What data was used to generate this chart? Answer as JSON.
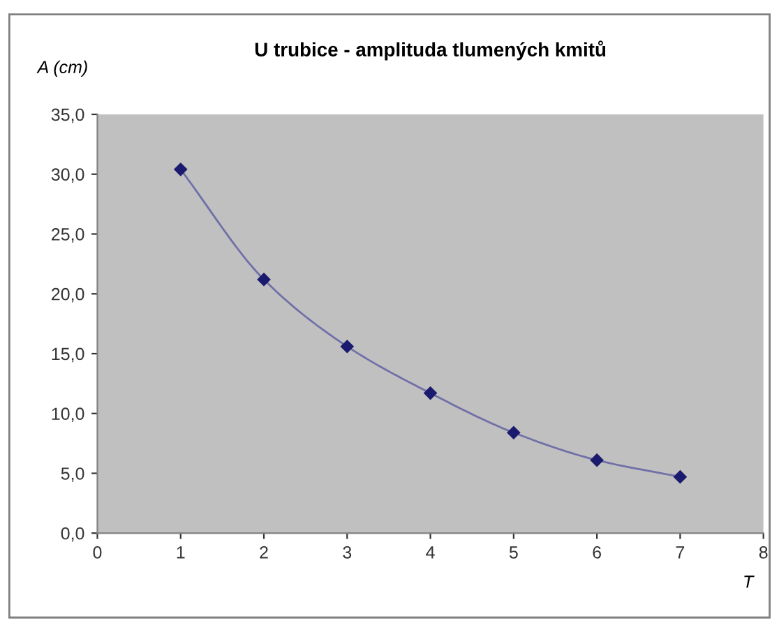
{
  "chart_data": {
    "type": "line",
    "title": "U trubice - amplituda tlumených kmitů",
    "xlabel": "T",
    "ylabel": "A (cm)",
    "x": [
      1,
      2,
      3,
      4,
      5,
      6,
      7
    ],
    "series": [
      {
        "color": "#1a1a6e",
        "values": [
          30.4,
          21.2,
          15.6,
          11.7,
          8.4,
          6.1,
          4.7
        ]
      }
    ],
    "xlim": [
      0,
      8
    ],
    "xticks": [
      0,
      1,
      2,
      3,
      4,
      5,
      6,
      7,
      8
    ],
    "ylim": [
      0,
      35
    ],
    "yticks": [
      {
        "value": 0,
        "label": "0,0"
      },
      {
        "value": 5,
        "label": "5,0"
      },
      {
        "value": 10,
        "label": "10,0"
      },
      {
        "value": 15,
        "label": "15,0"
      },
      {
        "value": 20,
        "label": "20,0"
      },
      {
        "value": 25,
        "label": "25,0"
      },
      {
        "value": 30,
        "label": "30,0"
      },
      {
        "value": 35,
        "label": "35,0"
      }
    ],
    "grid": false,
    "marker": "diamond",
    "line_style": "solid"
  }
}
